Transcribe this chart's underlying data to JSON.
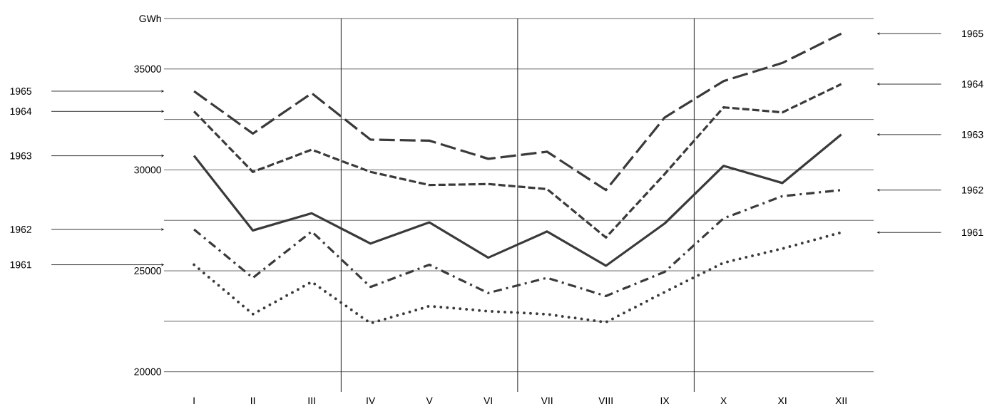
{
  "chart_data": {
    "type": "line",
    "ylabel": "GWh",
    "categories": [
      "I",
      "II",
      "III",
      "IV",
      "V",
      "VI",
      "VII",
      "VIII",
      "IX",
      "X",
      "XI",
      "XII"
    ],
    "series": [
      {
        "name": "1965",
        "color": "#3a3a3a",
        "line_style": "dashed",
        "values": [
          33900,
          31800,
          33800,
          31500,
          31450,
          30550,
          30900,
          29000,
          32600,
          34400,
          35300,
          36750
        ]
      },
      {
        "name": "1964",
        "color": "#3a3a3a",
        "line_style": "densely dashed",
        "values": [
          32900,
          29900,
          31000,
          29900,
          29250,
          29300,
          29050,
          26650,
          29800,
          33100,
          32850,
          34250
        ]
      },
      {
        "name": "1963",
        "color": "#3a3a3a",
        "line_style": "solid",
        "values": [
          30700,
          27000,
          27850,
          26350,
          27400,
          25650,
          26950,
          25250,
          27350,
          30200,
          29350,
          31750
        ]
      },
      {
        "name": "1962",
        "color": "#3a3a3a",
        "line_style": "dashdot",
        "values": [
          27050,
          24650,
          26950,
          24200,
          25300,
          23900,
          24650,
          23750,
          24950,
          27600,
          28700,
          29000
        ]
      },
      {
        "name": "1961",
        "color": "#3a3a3a",
        "line_style": "dotted",
        "values": [
          25300,
          22850,
          24450,
          22400,
          23250,
          23000,
          22850,
          22450,
          23950,
          25400,
          26100,
          26900
        ]
      }
    ],
    "ylim": [
      19000,
      37500
    ],
    "yticks": [
      20000,
      {
        "value": 22500,
        "label": null
      },
      25000,
      {
        "value": 27500,
        "label": null
      },
      30000,
      {
        "value": 32500,
        "label": null
      },
      35000,
      {
        "value": 37500,
        "label": null
      }
    ],
    "grid": "y"
  }
}
